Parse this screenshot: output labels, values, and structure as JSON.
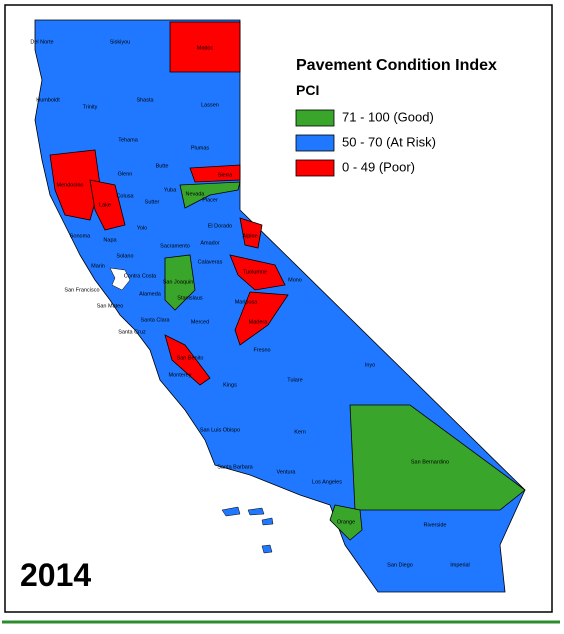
{
  "map": {
    "title": "Pavement Condition Index",
    "subtitle": "PCI",
    "year": "2014",
    "legend": [
      {
        "label": "71 - 100 (Good)",
        "color": "#3aa52b",
        "counties": [
          "Nevada",
          "San Joaquin",
          "San Bernardino",
          "Orange"
        ]
      },
      {
        "label": "50 - 70 (At Risk)",
        "color": "#1f78ff",
        "counties": [
          "Del Norte",
          "Siskiyou",
          "Humboldt",
          "Trinity",
          "Shasta",
          "Lassen",
          "Tehama",
          "Plumas",
          "Glenn",
          "Butte",
          "Colusa",
          "Sutter",
          "Yuba",
          "Placer",
          "El Dorado",
          "Sonoma",
          "Napa",
          "Yolo",
          "Sacramento",
          "Amador",
          "Solano",
          "Marin",
          "Contra Costa",
          "Calaveras",
          "Mono",
          "San Francisco",
          "Alameda",
          "San Mateo",
          "Stanislaus",
          "Mariposa",
          "Santa Clara",
          "Santa Cruz",
          "Merced",
          "Fresno",
          "Inyo",
          "Monterey",
          "Kings",
          "Tulare",
          "San Luis Obispo",
          "Kern",
          "Santa Barbara",
          "Ventura",
          "Los Angeles",
          "Riverside",
          "San Diego",
          "Imperial"
        ]
      },
      {
        "label": "0 - 49 (Poor)",
        "color": "#ff0000",
        "counties": [
          "Modoc",
          "Mendocino",
          "Lake",
          "Sierra",
          "Alpine",
          "Tuolumne",
          "Madera",
          "San Benito"
        ]
      }
    ]
  }
}
